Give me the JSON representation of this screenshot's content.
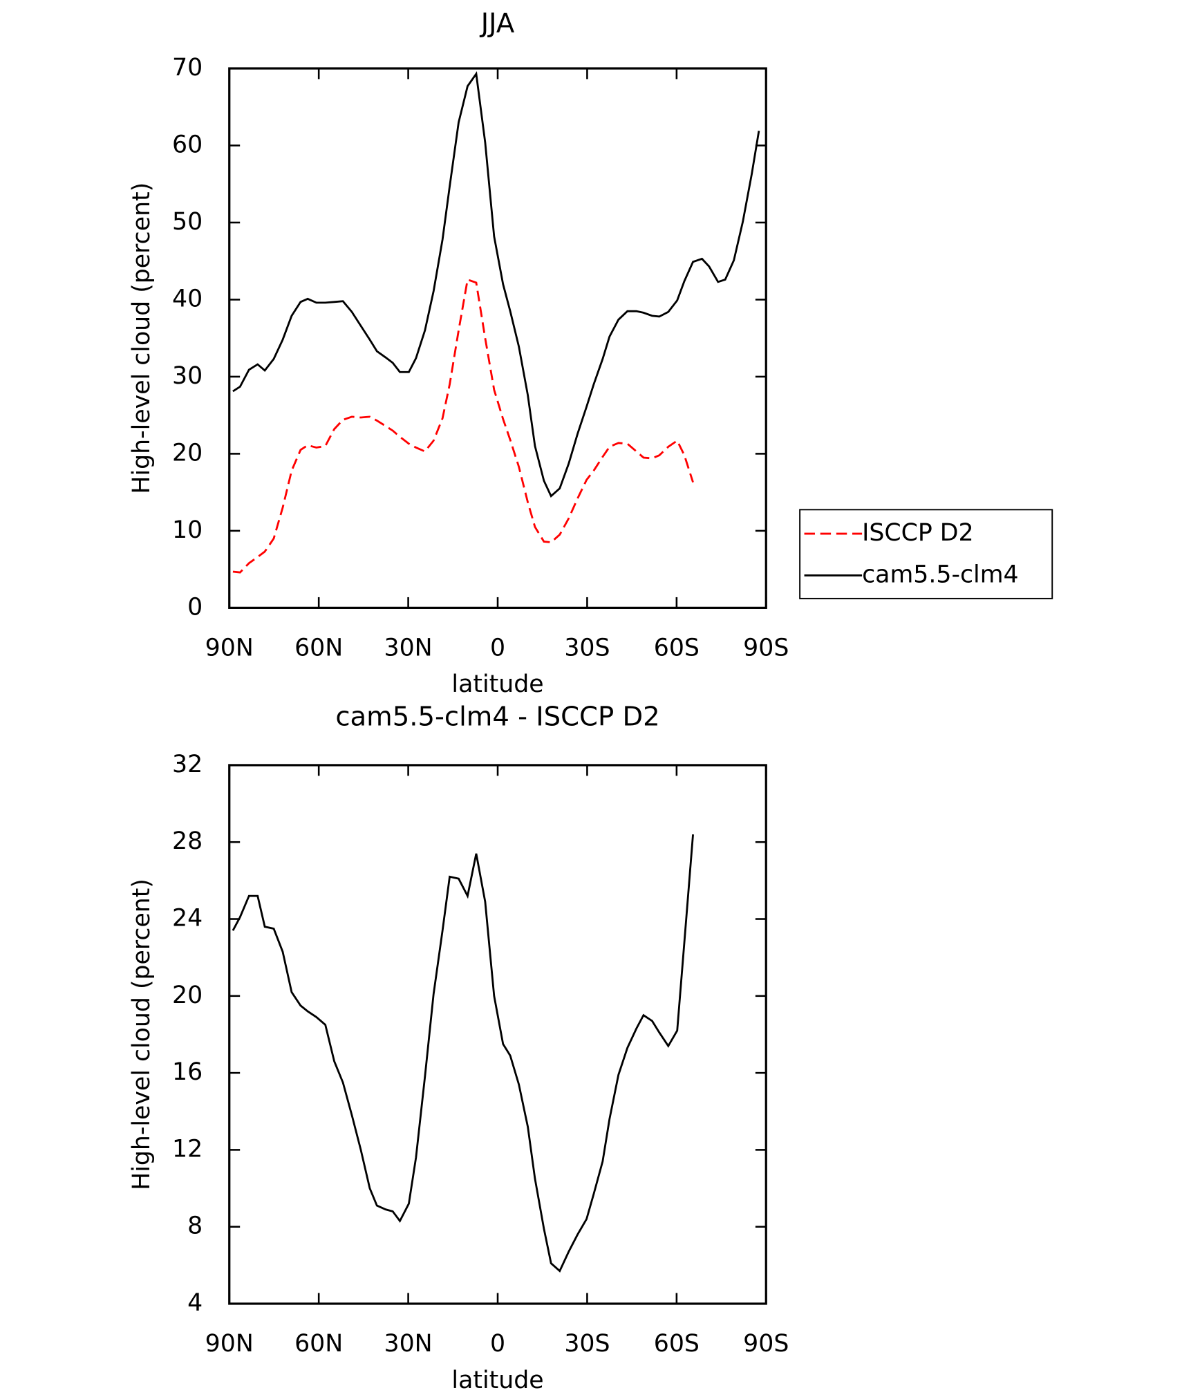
{
  "chart_data": [
    {
      "type": "line",
      "title": "JJA",
      "xlabel": "latitude",
      "ylabel": "High-level cloud (percent)",
      "x": [
        88.8,
        86.4,
        83.4,
        80.5,
        78.1,
        75.1,
        72.1,
        69.1,
        66.1,
        63.7,
        60.8,
        57.8,
        54.8,
        51.9,
        48.9,
        45.9,
        42.9,
        40.5,
        37.6,
        35.2,
        32.8,
        29.8,
        27.4,
        24.4,
        21.5,
        18.5,
        16.1,
        13.1,
        10.1,
        7.2,
        4.2,
        1.2,
        -1.8,
        -4.2,
        -7.1,
        -10.1,
        -12.5,
        -15.5,
        -17.9,
        -20.8,
        -23.8,
        -26.8,
        -29.8,
        -32.2,
        -35.2,
        -37.5,
        -40.5,
        -43.5,
        -46.5,
        -48.9,
        -51.8,
        -54.2,
        -57.2,
        -60.2,
        -62.6,
        -65.5,
        -68.5,
        -70.9,
        -73.9,
        -76.3,
        -79.2,
        -82.2,
        -85.2,
        -87.6
      ],
      "xlim": [
        90,
        -90
      ],
      "xticks": [
        {
          "value": 90,
          "label": "90N"
        },
        {
          "value": 60,
          "label": "60N"
        },
        {
          "value": 30,
          "label": "30N"
        },
        0,
        {
          "value": -30,
          "label": "30S"
        },
        {
          "value": -60,
          "label": "60S"
        },
        {
          "value": -90,
          "label": "90S"
        }
      ],
      "ylim": [
        0,
        70
      ],
      "yticks": [
        0,
        10,
        20,
        30,
        40,
        50,
        60,
        70
      ],
      "legend": "right",
      "series": [
        {
          "name": "ISCCP D2",
          "color": "#ff0000",
          "dash": "dashed",
          "values": [
            4.7,
            4.6,
            5.8,
            6.6,
            7.3,
            9.0,
            13.0,
            17.8,
            20.5,
            21.1,
            20.8,
            21.0,
            23.2,
            24.4,
            24.8,
            24.7,
            24.8,
            24.3,
            23.6,
            23.0,
            22.2,
            21.3,
            20.8,
            20.3,
            21.7,
            24.6,
            29.0,
            36.0,
            42.6,
            42.2,
            35.0,
            28.3,
            24.5,
            21.8,
            18.3,
            13.7,
            10.5,
            8.6,
            8.5,
            9.5,
            11.6,
            14.2,
            16.6,
            17.8,
            19.6,
            20.9,
            21.4,
            21.3,
            20.3,
            19.5,
            19.4,
            19.8,
            20.9,
            21.7,
            19.8,
            16.3,
            null,
            null,
            null,
            null,
            null,
            null,
            null,
            null
          ]
        },
        {
          "name": "cam5.5-clm4",
          "color": "#000000",
          "dash": "solid",
          "values": [
            28.1,
            28.7,
            30.9,
            31.6,
            30.8,
            32.3,
            34.8,
            37.9,
            39.7,
            40.1,
            39.6,
            39.6,
            39.7,
            39.8,
            38.4,
            36.6,
            34.8,
            33.3,
            32.5,
            31.8,
            30.6,
            30.6,
            32.4,
            36.0,
            41.1,
            47.8,
            54.7,
            63.0,
            67.7,
            69.3,
            60.4,
            48.2,
            42.0,
            38.5,
            33.9,
            27.6,
            21.0,
            16.5,
            14.5,
            15.5,
            18.7,
            22.6,
            26.1,
            29.0,
            32.3,
            35.2,
            37.4,
            38.5,
            38.5,
            38.3,
            37.9,
            37.8,
            38.4,
            39.9,
            42.4,
            44.9,
            45.3,
            44.3,
            42.3,
            42.6,
            45.1,
            50.1,
            56.3,
            61.9
          ]
        }
      ]
    },
    {
      "type": "line",
      "title": "cam5.5-clm4 - ISCCP D2",
      "xlabel": "latitude",
      "ylabel": "High-level cloud (percent)",
      "x": [
        88.8,
        86.4,
        83.4,
        80.5,
        78.1,
        75.1,
        72.1,
        69.1,
        66.1,
        63.7,
        60.8,
        57.8,
        54.8,
        51.9,
        48.9,
        45.9,
        42.9,
        40.5,
        37.6,
        35.2,
        32.8,
        29.8,
        27.4,
        24.4,
        21.5,
        18.5,
        16.1,
        13.1,
        10.1,
        7.2,
        4.2,
        1.2,
        -1.8,
        -4.2,
        -7.1,
        -10.1,
        -12.5,
        -15.5,
        -17.9,
        -20.8,
        -23.8,
        -26.8,
        -29.8,
        -32.2,
        -35.2,
        -37.5,
        -40.5,
        -43.5,
        -46.5,
        -48.9,
        -51.8,
        -54.2,
        -57.2,
        -60.2,
        -62.6,
        -65.5,
        -68.5,
        -70.9,
        -73.9,
        -76.3,
        -79.2,
        -82.2,
        -85.2,
        -87.6
      ],
      "xlim": [
        90,
        -90
      ],
      "xticks": [
        {
          "value": 90,
          "label": "90N"
        },
        {
          "value": 60,
          "label": "60N"
        },
        {
          "value": 30,
          "label": "30N"
        },
        0,
        {
          "value": -30,
          "label": "30S"
        },
        {
          "value": -60,
          "label": "60S"
        },
        {
          "value": -90,
          "label": "90S"
        }
      ],
      "ylim": [
        4,
        32
      ],
      "yticks": [
        4,
        8,
        12,
        16,
        20,
        24,
        28,
        32
      ],
      "series": [
        {
          "color": "#000000",
          "dash": "solid",
          "values": [
            23.4,
            24.1,
            25.2,
            25.2,
            23.6,
            23.5,
            22.3,
            20.2,
            19.5,
            19.2,
            18.9,
            18.5,
            16.6,
            15.5,
            13.8,
            12.0,
            10.0,
            9.1,
            8.9,
            8.8,
            8.3,
            9.2,
            11.6,
            15.8,
            20.1,
            23.4,
            26.2,
            26.1,
            25.2,
            27.4,
            24.9,
            20.0,
            17.5,
            16.9,
            15.4,
            13.2,
            10.5,
            7.9,
            6.1,
            5.7,
            6.7,
            7.6,
            8.4,
            9.7,
            11.4,
            13.6,
            15.9,
            17.3,
            18.3,
            19.0,
            18.7,
            18.1,
            17.4,
            18.2,
            22.8,
            28.4,
            null,
            null,
            null,
            null,
            null,
            null,
            null,
            null
          ]
        }
      ]
    }
  ]
}
